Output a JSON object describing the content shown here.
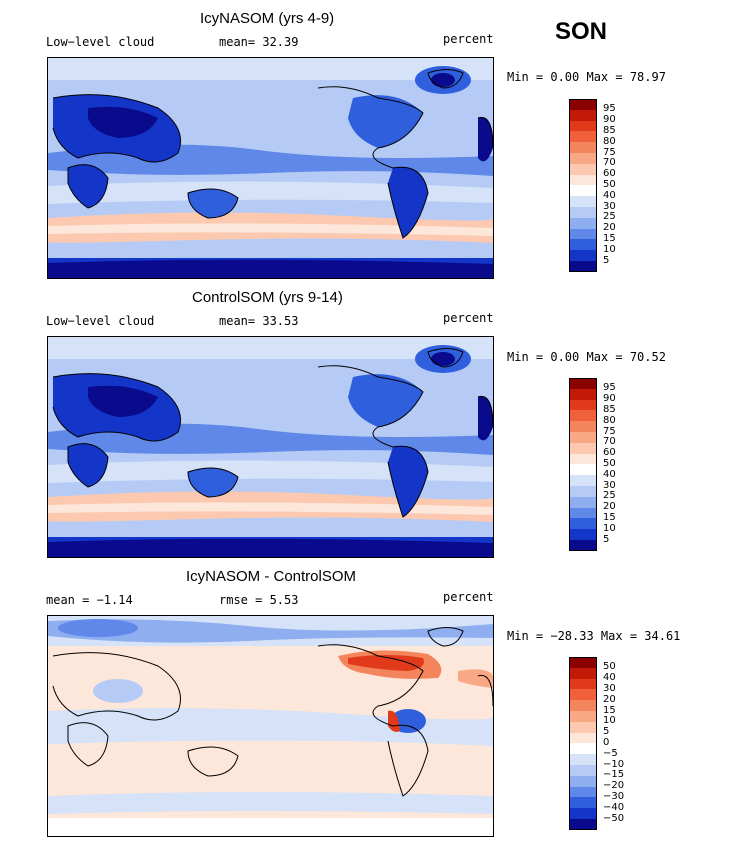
{
  "season": "SON",
  "panels": [
    {
      "title": "IcyNASOM (yrs 4-9)",
      "left_label": "Low−level cloud",
      "mid_label": "mean=   32.39",
      "units": "percent",
      "range_label": "Min =    0.00 Max =   78.97"
    },
    {
      "title": "ControlSOM (yrs 9-14)",
      "left_label": "Low−level cloud",
      "mid_label": "mean=   33.53",
      "units": "percent",
      "range_label": "Min =    0.00 Max =   70.52"
    },
    {
      "title": "IcyNASOM - ControlSOM",
      "left_label": "mean =   −1.14",
      "mid_label": "rmse =    5.53",
      "units": "percent",
      "range_label": "Min = −28.33 Max =   34.61"
    }
  ],
  "colorbar_abs": {
    "labels": [
      "95",
      "90",
      "85",
      "80",
      "75",
      "70",
      "60",
      "50",
      "40",
      "30",
      "25",
      "20",
      "15",
      "10",
      "5"
    ],
    "colors": [
      "#8b0000",
      "#c21a06",
      "#e03a1a",
      "#f0603a",
      "#f4845c",
      "#f8a884",
      "#fcc9b0",
      "#fde6da",
      "#ffffff",
      "#d5e2f8",
      "#b5cbf5",
      "#8eaef0",
      "#5f88e8",
      "#2f5fdc",
      "#1436c8",
      "#0a0a8c"
    ]
  },
  "colorbar_diff": {
    "labels": [
      "50",
      "40",
      "30",
      "20",
      "15",
      "10",
      "5",
      "0",
      "−5",
      "−10",
      "−15",
      "−20",
      "−30",
      "−40",
      "−50"
    ],
    "colors": [
      "#8b0000",
      "#c21a06",
      "#e03a1a",
      "#f0603a",
      "#f4845c",
      "#f8a884",
      "#fcc9b0",
      "#fde6da",
      "#ffffff",
      "#d5e2f8",
      "#b5cbf5",
      "#8eaef0",
      "#5f88e8",
      "#2f5fdc",
      "#1436c8",
      "#0a0a8c"
    ]
  }
}
